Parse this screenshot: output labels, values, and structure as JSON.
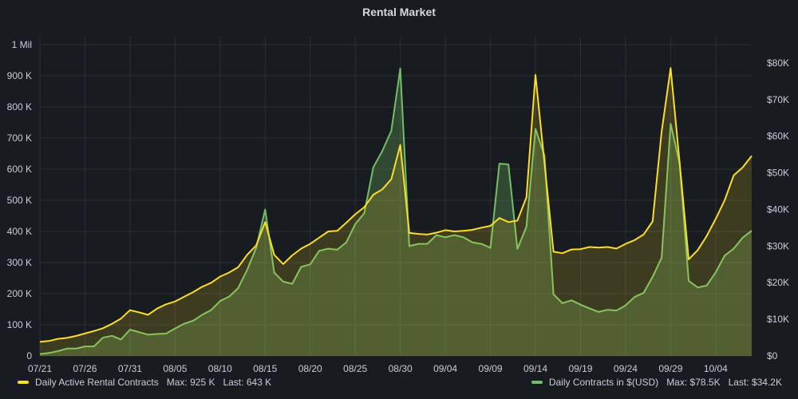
{
  "panel": {
    "title": "Rental Market"
  },
  "legend": [
    {
      "name": "Daily Active Rental Contracts",
      "max_label": "Max:",
      "max": "925 K",
      "last_label": "Last:",
      "last": "643 K",
      "color": "#fade2a"
    },
    {
      "name": "Daily Contracts in $(USD)",
      "max_label": "Max:",
      "max": "$78.5K",
      "last_label": "Last:",
      "last": "$34.2K",
      "color": "#73bf69"
    }
  ],
  "chart_data": {
    "type": "area",
    "title": "Rental Market",
    "x_ticks": [
      "07/21",
      "07/26",
      "07/31",
      "08/05",
      "08/10",
      "08/15",
      "08/20",
      "08/25",
      "08/30",
      "09/04",
      "09/09",
      "09/14",
      "09/19",
      "09/24",
      "09/29",
      "10/04"
    ],
    "y_left": {
      "range": [
        0,
        1000000
      ],
      "ticks": [
        "0",
        "100 K",
        "200 K",
        "300 K",
        "400 K",
        "500 K",
        "600 K",
        "700 K",
        "800 K",
        "900 K",
        "1 Mil"
      ]
    },
    "y_right": {
      "range": [
        0,
        85000
      ],
      "ticks": [
        "$0",
        "$10K",
        "$20K",
        "$30K",
        "$40K",
        "$50K",
        "$60K",
        "$70K",
        "$80K"
      ]
    },
    "grid": true,
    "legend_position": "bottom",
    "series": [
      {
        "name": "Daily Active Rental Contracts",
        "axis": "left",
        "color": "#fade2a",
        "values": [
          45000,
          48000,
          55000,
          58000,
          64000,
          72000,
          80000,
          89000,
          103000,
          120000,
          147000,
          140000,
          132000,
          152000,
          166000,
          175000,
          190000,
          205000,
          222000,
          235000,
          255000,
          268000,
          285000,
          325000,
          355000,
          430000,
          325000,
          295000,
          323000,
          345000,
          360000,
          380000,
          400000,
          402000,
          428000,
          455000,
          478000,
          518000,
          535000,
          568000,
          678000,
          395000,
          392000,
          390000,
          396000,
          404000,
          400000,
          402000,
          405000,
          412000,
          418000,
          443000,
          430000,
          435000,
          510000,
          903000,
          620000,
          335000,
          330000,
          342000,
          343000,
          350000,
          348000,
          350000,
          345000,
          360000,
          372000,
          390000,
          432000,
          720000,
          925000,
          620000,
          310000,
          340000,
          385000,
          440000,
          500000,
          580000,
          606000,
          643000
        ]
      },
      {
        "name": "Daily Contracts in $(USD)",
        "axis": "right",
        "color": "#73bf69",
        "values": [
          500,
          800,
          1300,
          2000,
          2000,
          2600,
          2600,
          5000,
          5500,
          4500,
          7200,
          6500,
          5800,
          6000,
          6100,
          7500,
          8800,
          9600,
          11200,
          12500,
          15000,
          16200,
          18500,
          23500,
          29500,
          40000,
          22800,
          20300,
          19700,
          24300,
          25000,
          28700,
          29300,
          29000,
          31000,
          36000,
          39000,
          51500,
          56000,
          61500,
          78500,
          30000,
          30600,
          30600,
          33000,
          32400,
          33000,
          32400,
          31000,
          30600,
          29500,
          52500,
          52300,
          29200,
          35300,
          62000,
          54700,
          16800,
          14400,
          15200,
          14000,
          13000,
          12000,
          12600,
          12400,
          13800,
          16100,
          17200,
          21600,
          26800,
          63400,
          52500,
          20500,
          18700,
          19200,
          22800,
          27400,
          29300,
          32300,
          34200
        ]
      }
    ]
  }
}
